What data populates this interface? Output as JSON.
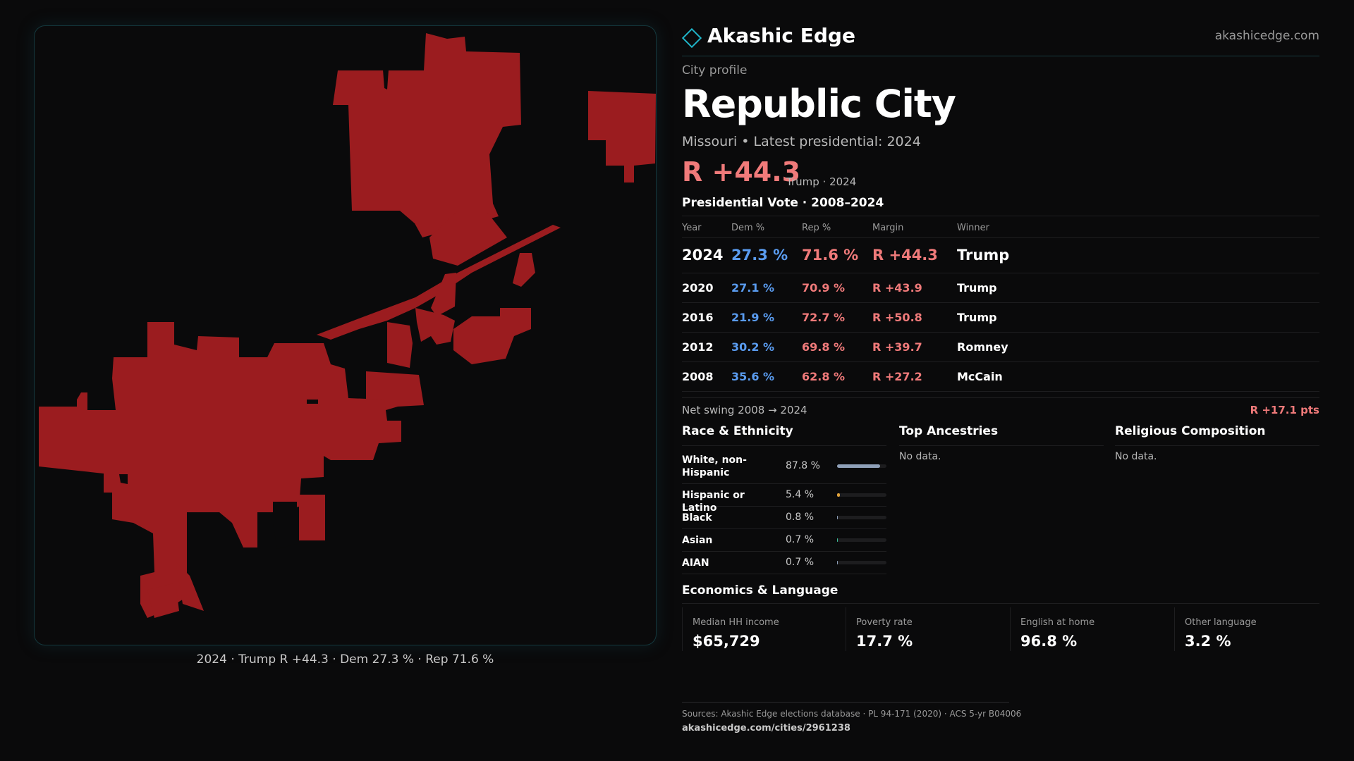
{
  "colors": {
    "background": "#0a0a0b",
    "accent": "#1fb5c9",
    "republican": "#f07a7a",
    "democrat": "#5a9cf0",
    "map_fill": "#9b1c1f"
  },
  "map": {
    "caption": "2024 · Trump R +44.3 · Dem 27.3 % · Rep 71.6 %"
  },
  "header": {
    "brand_icon": "diamond-icon",
    "brand": "Akashic Edge",
    "site": "akashicedge.com"
  },
  "profile": {
    "kicker": "City profile",
    "city": "Republic City",
    "subtitle": "Missouri • Latest presidential: 2024",
    "margin": "R +44.3",
    "margin_note": "Trump · 2024"
  },
  "vote_table": {
    "title": "Presidential Vote · 2008–2024",
    "headers": [
      "Year",
      "Dem %",
      "Rep %",
      "Margin",
      "Winner"
    ],
    "rows": [
      {
        "year": "2024",
        "dem": "27.3 %",
        "rep": "71.6 %",
        "margin": "R +44.3",
        "winner": "Trump"
      },
      {
        "year": "2020",
        "dem": "27.1 %",
        "rep": "70.9 %",
        "margin": "R +43.9",
        "winner": "Trump"
      },
      {
        "year": "2016",
        "dem": "21.9 %",
        "rep": "72.7 %",
        "margin": "R +50.8",
        "winner": "Trump"
      },
      {
        "year": "2012",
        "dem": "30.2 %",
        "rep": "69.8 %",
        "margin": "R +39.7",
        "winner": "Romney"
      },
      {
        "year": "2008",
        "dem": "35.6 %",
        "rep": "62.8 %",
        "margin": "R +27.2",
        "winner": "McCain"
      }
    ],
    "swing_label": "Net swing 2008 → 2024",
    "swing_value": "R +17.1 pts"
  },
  "race": {
    "title": "Race & Ethnicity",
    "items": [
      {
        "label": "White, non-Hispanic",
        "pct": "87.8 %",
        "value": 87.8,
        "color": "#8fa0b8"
      },
      {
        "label": "Hispanic or Latino",
        "pct": "5.4 %",
        "value": 5.4,
        "color": "#e0a23a"
      },
      {
        "label": "Black",
        "pct": "0.8 %",
        "value": 0.8,
        "color": "#8fa0b8"
      },
      {
        "label": "Asian",
        "pct": "0.7 %",
        "value": 0.7,
        "color": "#3bbf9a"
      },
      {
        "label": "AIAN",
        "pct": "0.7 %",
        "value": 0.7,
        "color": "#8fa0b8"
      }
    ]
  },
  "ancestries": {
    "title": "Top Ancestries",
    "empty": "No data."
  },
  "religion": {
    "title": "Religious Composition",
    "empty": "No data."
  },
  "economics": {
    "title": "Economics & Language",
    "items": [
      {
        "label": "Median HH income",
        "value": "$65,729"
      },
      {
        "label": "Poverty rate",
        "value": "17.7 %"
      },
      {
        "label": "English at home",
        "value": "96.8 %"
      },
      {
        "label": "Other language",
        "value": "3.2 %"
      }
    ]
  },
  "footer": {
    "sources": "Sources: Akashic Edge elections database · PL 94-171 (2020) · ACS 5-yr B04006",
    "url": "akashicedge.com/cities/2961238"
  }
}
